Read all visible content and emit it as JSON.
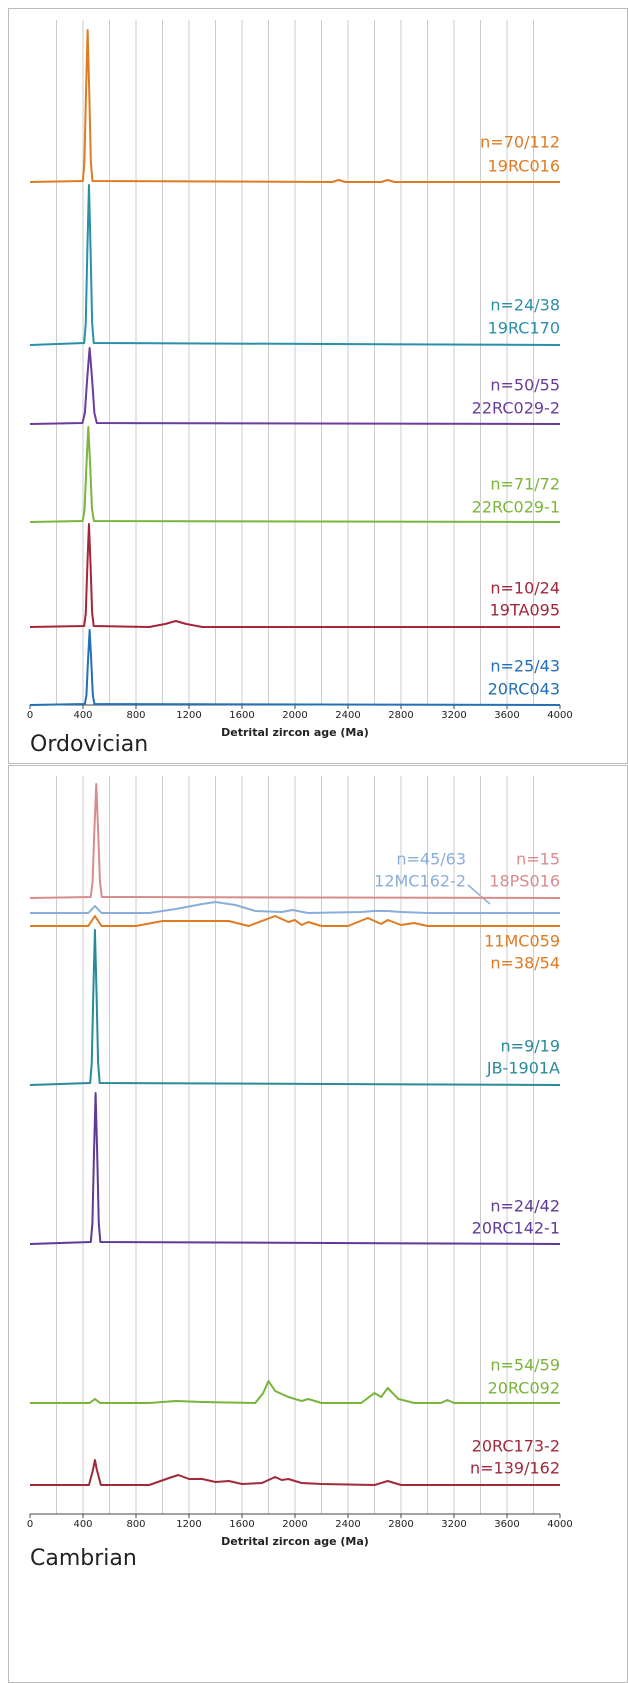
{
  "chart_data": [
    {
      "type": "line",
      "title": "Ordovician",
      "xlabel": "Detrital zircon age (Ma)",
      "xlim": [
        0,
        4000
      ],
      "xticks": [
        0,
        400,
        800,
        1200,
        1600,
        2000,
        2400,
        2800,
        3200,
        3600,
        4000
      ],
      "xgrid": [
        200,
        400,
        600,
        800,
        1000,
        1200,
        1400,
        1600,
        1800,
        2000,
        2200,
        2400,
        2600,
        2800,
        3000,
        3200,
        3400,
        3600,
        3800
      ],
      "series": [
        {
          "name": "19RC016",
          "label": "n=70/112",
          "color": "#e07b22",
          "x": [
            0,
            399,
            411,
            423,
            435,
            447,
            459,
            471,
            2280,
            2330,
            2380,
            2650,
            2700,
            2750,
            4000
          ],
          "values": [
            0,
            1,
            21,
            91,
            152,
            91,
            21,
            1,
            0,
            2,
            0,
            0,
            2,
            0,
            0
          ]
        },
        {
          "name": "19RC170",
          "label": "n=24/38",
          "color": "#2a8fa8",
          "x": [
            0,
            409,
            421,
            433,
            445,
            457,
            469,
            481,
            4000
          ],
          "values": [
            0,
            2,
            22,
            96,
            160,
            96,
            22,
            2,
            0
          ]
        },
        {
          "name": "22RC029-2",
          "label": "n=50/55",
          "color": "#6a3d9a",
          "x": [
            0,
            396,
            414,
            432,
            450,
            468,
            486,
            504,
            4000
          ],
          "values": [
            0,
            1,
            11,
            46,
            76,
            46,
            11,
            1,
            0
          ]
        },
        {
          "name": "22RC029-1",
          "label": "n=71/72",
          "color": "#7ab63a",
          "x": [
            0,
            398,
            412,
            426,
            440,
            454,
            468,
            482,
            4000
          ],
          "values": [
            0,
            1,
            13,
            57,
            95,
            57,
            13,
            1,
            0
          ]
        },
        {
          "name": "19TA095",
          "label": "n=10/24",
          "color": "#a3263a",
          "x": [
            0,
            409,
            421,
            433,
            445,
            457,
            469,
            481,
            900,
            1020,
            1100,
            1180,
            1300,
            4000
          ],
          "values": [
            0,
            1,
            14,
            62,
            103,
            62,
            14,
            1,
            0,
            3,
            6,
            3,
            0,
            0
          ]
        },
        {
          "name": "20RC043",
          "label": "n=25/43",
          "color": "#2270b5",
          "x": [
            0,
            414,
            426,
            438,
            450,
            462,
            474,
            486,
            4000
          ],
          "values": [
            0,
            1,
            10,
            45,
            75,
            45,
            10,
            1,
            0
          ]
        }
      ]
    },
    {
      "type": "line",
      "title": "Cambrian",
      "xlabel": "Detrital zircon age (Ma)",
      "xlim": [
        0,
        4000
      ],
      "xticks": [
        0,
        400,
        800,
        1200,
        1600,
        2000,
        2400,
        2800,
        3200,
        3600,
        4000
      ],
      "xgrid": [
        200,
        400,
        600,
        800,
        1000,
        1200,
        1400,
        1600,
        1800,
        2000,
        2200,
        2400,
        2600,
        2800,
        3000,
        3200,
        3400,
        3600,
        3800
      ],
      "series": [
        {
          "name": "18PS016",
          "label": "n=15",
          "color": "#d98c8c",
          "x": [
            0,
            458,
            472,
            486,
            500,
            514,
            528,
            542,
            4000
          ],
          "values": [
            0,
            1,
            16,
            68,
            114,
            68,
            16,
            1,
            0
          ]
        },
        {
          "name": "12MC162-2",
          "label": "n=45/63",
          "color": "#8aaedc",
          "x": [
            0,
            440,
            490,
            540,
            900,
            1100,
            1300,
            1400,
            1550,
            1700,
            1900,
            1980,
            2100,
            2500,
            2600,
            2700,
            2800,
            3000,
            4000
          ],
          "values": [
            0,
            0,
            7,
            0,
            0,
            4,
            9,
            11,
            8,
            2,
            1,
            3,
            0,
            1,
            2,
            2,
            1,
            0,
            0
          ]
        },
        {
          "name": "11MC059",
          "label": "n=38/54",
          "color": "#e07b22",
          "x": [
            0,
            440,
            490,
            540,
            800,
            1000,
            1200,
            1500,
            1650,
            1850,
            1950,
            2000,
            2050,
            2100,
            2200,
            2400,
            2550,
            2650,
            2700,
            2800,
            2900,
            3000,
            4000
          ],
          "values": [
            0,
            0,
            10,
            0,
            0,
            5,
            5,
            5,
            0,
            10,
            4,
            6,
            1,
            4,
            0,
            0,
            8,
            2,
            6,
            1,
            3,
            0,
            0
          ]
        },
        {
          "name": "JB-1901A",
          "label": "n=9/19",
          "color": "#2a8a9a",
          "x": [
            0,
            454,
            466,
            478,
            490,
            502,
            514,
            526,
            4000
          ],
          "values": [
            0,
            2,
            22,
            93,
            155,
            93,
            22,
            2,
            0
          ]
        },
        {
          "name": "20RC142-1",
          "label": "n=24/42",
          "color": "#5f3a96",
          "x": [
            0,
            459,
            471,
            483,
            495,
            507,
            519,
            531,
            4000
          ],
          "values": [
            0,
            2,
            21,
            91,
            151,
            91,
            21,
            2,
            0
          ]
        },
        {
          "name": "20RC092",
          "label": "n=54/59",
          "color": "#79b43a",
          "x": [
            0,
            450,
            490,
            530,
            900,
            1100,
            1300,
            1700,
            1760,
            1800,
            1850,
            1950,
            2050,
            2100,
            2200,
            2500,
            2600,
            2650,
            2700,
            2780,
            2900,
            3100,
            3150,
            3200,
            4000
          ],
          "values": [
            0,
            0,
            4,
            0,
            0,
            2,
            1,
            0,
            10,
            22,
            12,
            6,
            2,
            4,
            0,
            0,
            10,
            6,
            15,
            4,
            0,
            0,
            3,
            0,
            0
          ]
        },
        {
          "name": "20RC173-2",
          "label": "n=139/162",
          "color": "#a02a3a",
          "x": [
            0,
            445,
            475,
            490,
            505,
            535,
            900,
            1050,
            1120,
            1200,
            1300,
            1400,
            1500,
            1600,
            1750,
            1850,
            1900,
            1950,
            2050,
            2200,
            2600,
            2700,
            2800,
            4000
          ],
          "values": [
            0,
            0,
            15,
            25,
            15,
            0,
            0,
            7,
            10,
            6,
            6,
            3,
            4,
            1,
            2,
            8,
            5,
            6,
            2,
            1,
            0,
            4,
            0,
            0
          ]
        }
      ]
    }
  ]
}
